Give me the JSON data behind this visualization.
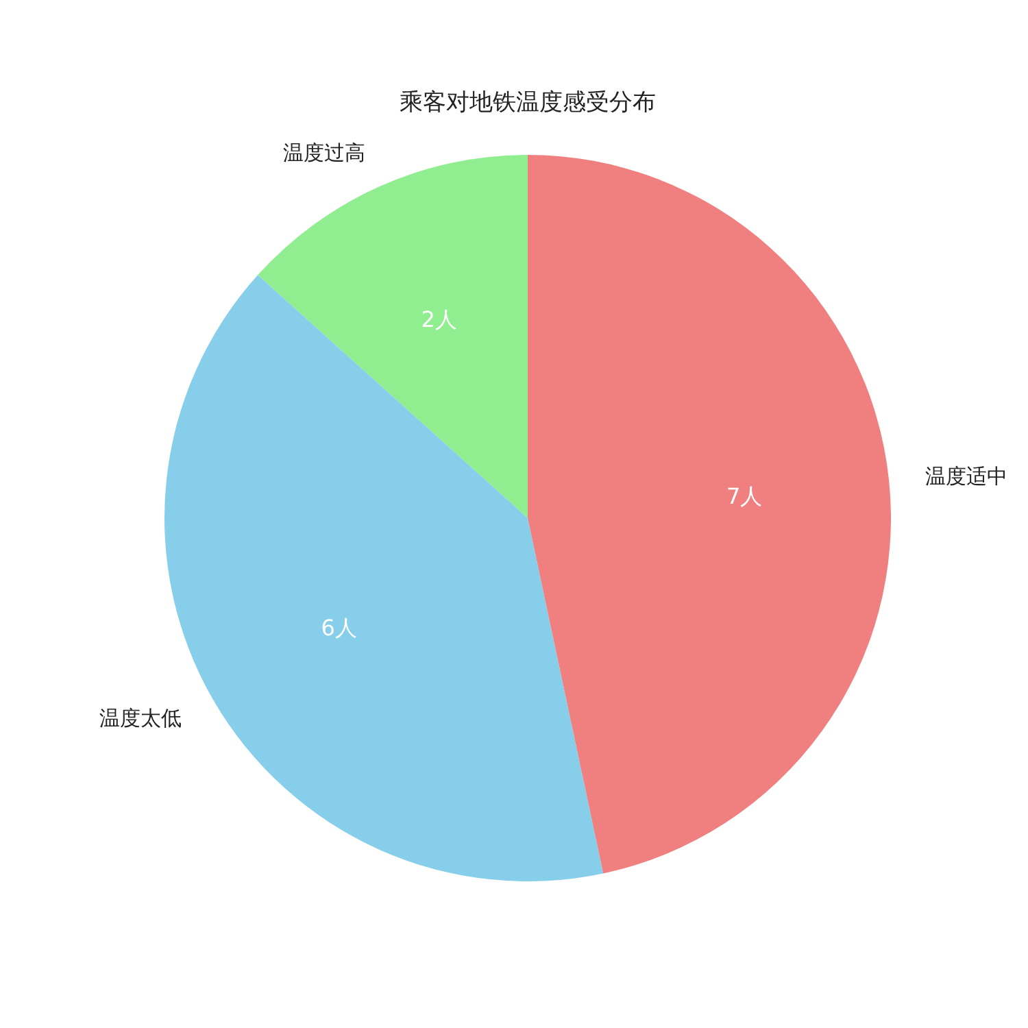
{
  "chart_data": {
    "type": "pie",
    "title": "乘客对地铁温度感受分布",
    "categories": [
      "温度过高",
      "温度太低",
      "温度适中"
    ],
    "values": [
      2,
      6,
      7
    ],
    "colors": [
      "#90ee90",
      "#87ceeb",
      "#f08080"
    ],
    "value_labels": [
      "2人",
      "6人",
      "7人"
    ]
  }
}
